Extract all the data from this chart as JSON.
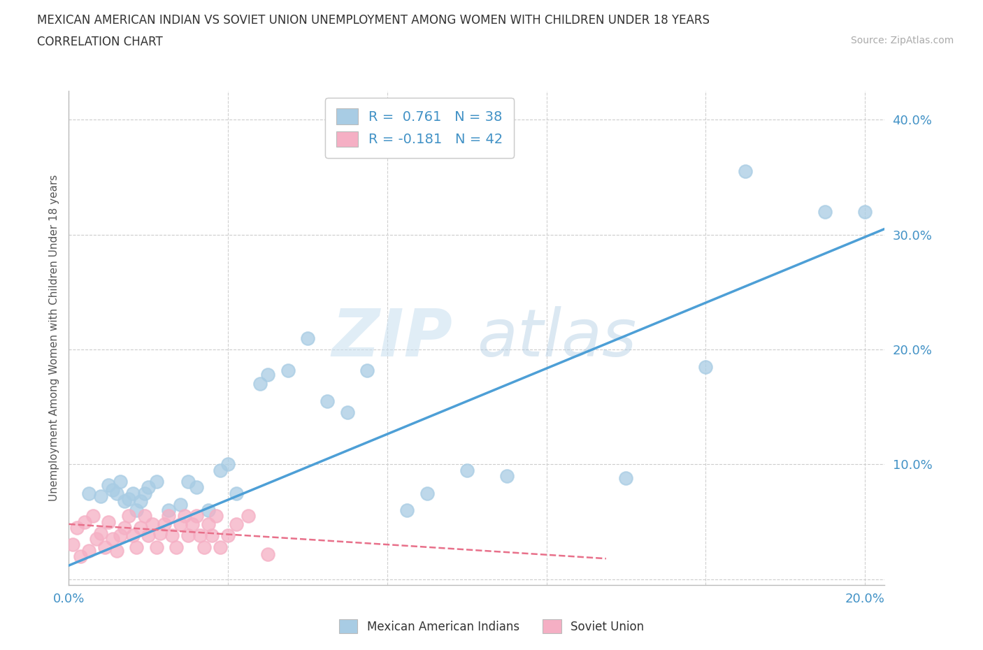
{
  "title_line1": "MEXICAN AMERICAN INDIAN VS SOVIET UNION UNEMPLOYMENT AMONG WOMEN WITH CHILDREN UNDER 18 YEARS",
  "title_line2": "CORRELATION CHART",
  "source": "Source: ZipAtlas.com",
  "ylabel": "Unemployment Among Women with Children Under 18 years",
  "xlim": [
    0.0,
    0.205
  ],
  "ylim": [
    -0.005,
    0.425
  ],
  "xticks": [
    0.0,
    0.04,
    0.08,
    0.12,
    0.16,
    0.2
  ],
  "yticks": [
    0.0,
    0.1,
    0.2,
    0.3,
    0.4
  ],
  "xtick_labels": [
    "0.0%",
    "",
    "",
    "",
    "",
    "20.0%"
  ],
  "ytick_labels": [
    "",
    "10.0%",
    "20.0%",
    "30.0%",
    "40.0%"
  ],
  "legend1_R": "0.761",
  "legend1_N": "38",
  "legend2_R": "-0.181",
  "legend2_N": "42",
  "blue_color": "#a8cce4",
  "pink_color": "#f5afc4",
  "blue_line_color": "#4d9fd6",
  "pink_line_color": "#e8708a",
  "watermark_top": "ZIP",
  "watermark_bot": "atlas",
  "blue_scatter_x": [
    0.005,
    0.008,
    0.01,
    0.011,
    0.012,
    0.013,
    0.014,
    0.015,
    0.016,
    0.017,
    0.018,
    0.019,
    0.02,
    0.022,
    0.025,
    0.028,
    0.03,
    0.032,
    0.035,
    0.038,
    0.04,
    0.042,
    0.048,
    0.05,
    0.055,
    0.06,
    0.065,
    0.07,
    0.075,
    0.085,
    0.09,
    0.1,
    0.11,
    0.14,
    0.16,
    0.17,
    0.19,
    0.2
  ],
  "blue_scatter_y": [
    0.075,
    0.072,
    0.082,
    0.078,
    0.075,
    0.085,
    0.068,
    0.07,
    0.075,
    0.06,
    0.068,
    0.075,
    0.08,
    0.085,
    0.06,
    0.065,
    0.085,
    0.08,
    0.06,
    0.095,
    0.1,
    0.075,
    0.17,
    0.178,
    0.182,
    0.21,
    0.155,
    0.145,
    0.182,
    0.06,
    0.075,
    0.095,
    0.09,
    0.088,
    0.185,
    0.355,
    0.32,
    0.32
  ],
  "pink_scatter_x": [
    0.001,
    0.002,
    0.003,
    0.004,
    0.005,
    0.006,
    0.007,
    0.008,
    0.009,
    0.01,
    0.011,
    0.012,
    0.013,
    0.014,
    0.015,
    0.016,
    0.017,
    0.018,
    0.019,
    0.02,
    0.021,
    0.022,
    0.023,
    0.024,
    0.025,
    0.026,
    0.027,
    0.028,
    0.029,
    0.03,
    0.031,
    0.032,
    0.033,
    0.034,
    0.035,
    0.036,
    0.037,
    0.038,
    0.04,
    0.042,
    0.045,
    0.05
  ],
  "pink_scatter_y": [
    0.03,
    0.045,
    0.02,
    0.05,
    0.025,
    0.055,
    0.035,
    0.04,
    0.028,
    0.05,
    0.035,
    0.025,
    0.038,
    0.045,
    0.055,
    0.038,
    0.028,
    0.045,
    0.055,
    0.038,
    0.048,
    0.028,
    0.04,
    0.048,
    0.055,
    0.038,
    0.028,
    0.048,
    0.055,
    0.038,
    0.048,
    0.055,
    0.038,
    0.028,
    0.048,
    0.038,
    0.055,
    0.028,
    0.038,
    0.048,
    0.055,
    0.022
  ],
  "blue_fit_x": [
    0.0,
    0.205
  ],
  "blue_fit_y": [
    0.012,
    0.305
  ],
  "pink_fit_x": [
    0.0,
    0.135
  ],
  "pink_fit_y": [
    0.048,
    0.018
  ]
}
